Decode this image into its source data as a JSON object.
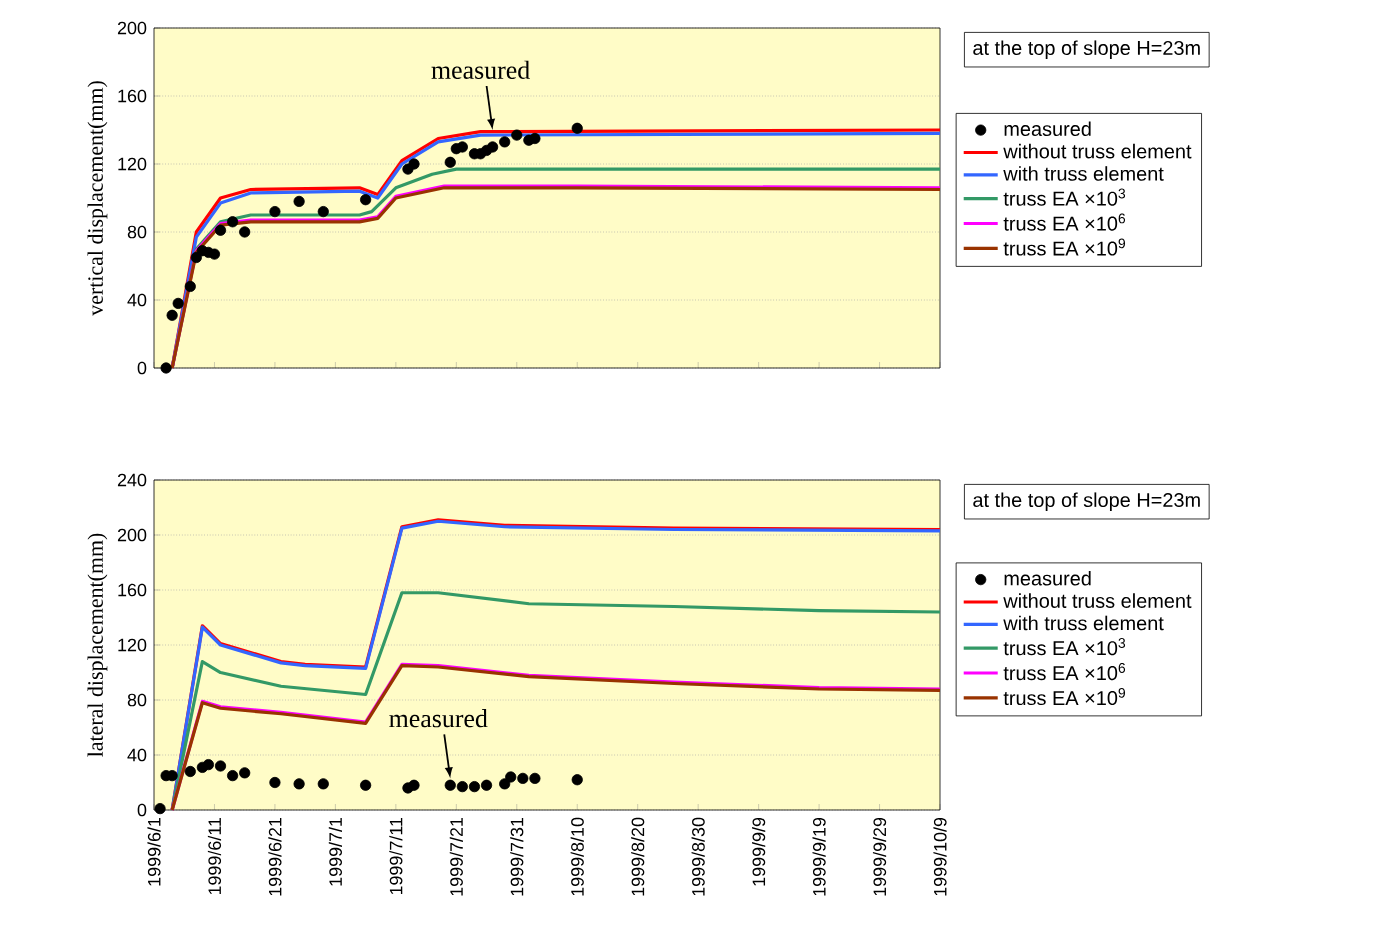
{
  "chart_data": [
    {
      "type": "line",
      "ylabel": "vertical displacement(mm)",
      "legend_title": "at the top of slope H=23m",
      "xlim": [
        "1999-06-01",
        "1999-10-09"
      ],
      "xticks": [
        {
          "value": "1999-06-01",
          "label": null
        },
        {
          "value": "1999-06-11",
          "label": null
        },
        {
          "value": "1999-06-21",
          "label": null
        },
        {
          "value": "1999-07-01",
          "label": null
        },
        {
          "value": "1999-07-11",
          "label": null
        },
        {
          "value": "1999-07-21",
          "label": null
        },
        {
          "value": "1999-07-31",
          "label": null
        },
        {
          "value": "1999-08-10",
          "label": null
        },
        {
          "value": "1999-08-20",
          "label": null
        },
        {
          "value": "1999-08-30",
          "label": null
        },
        {
          "value": "1999-09-09",
          "label": null
        },
        {
          "value": "1999-09-19",
          "label": null
        },
        {
          "value": "1999-09-29",
          "label": null
        },
        {
          "value": "1999-10-09",
          "label": null
        }
      ],
      "ylim": [
        0,
        200
      ],
      "yticks": [
        0,
        40,
        80,
        120,
        160,
        200
      ],
      "grid": "y",
      "legend": "right",
      "tick_labels": "y",
      "annotations": [
        {
          "text": "measured",
          "x": "1999-07-27",
          "y": 140
        }
      ],
      "series": [
        {
          "name": "measured",
          "type": "scatter",
          "marker": "circle",
          "color": "#000000",
          "x": [
            "1999-06-03",
            "1999-06-04",
            "1999-06-05",
            "1999-06-07",
            "1999-06-08",
            "1999-06-09",
            "1999-06-10",
            "1999-06-11",
            "1999-06-12",
            "1999-06-14",
            "1999-06-16",
            "1999-06-21",
            "1999-06-25",
            "1999-06-29",
            "1999-07-06",
            "1999-07-13",
            "1999-07-14",
            "1999-07-20",
            "1999-07-21",
            "1999-07-22",
            "1999-07-24",
            "1999-07-25",
            "1999-07-26",
            "1999-07-27",
            "1999-07-29",
            "1999-07-31",
            "1999-08-02",
            "1999-08-03",
            "1999-08-10"
          ],
          "values": [
            0,
            31,
            38,
            48,
            65,
            69,
            68,
            67,
            81,
            86,
            80,
            92,
            98,
            92,
            99,
            117,
            120,
            121,
            129,
            130,
            126,
            126,
            128,
            130,
            133,
            137,
            134,
            135,
            141
          ]
        },
        {
          "name": "without truss element",
          "color": "#ff0000",
          "x": [
            "1999-06-04",
            "1999-06-08",
            "1999-06-12",
            "1999-06-17",
            "1999-07-05",
            "1999-07-08",
            "1999-07-12",
            "1999-07-18",
            "1999-07-25",
            "1999-10-09"
          ],
          "values": [
            0,
            80,
            100,
            105,
            106,
            102,
            122,
            135,
            139,
            140
          ]
        },
        {
          "name": "with truss element",
          "color": "#3366ff",
          "x": [
            "1999-06-04",
            "1999-06-08",
            "1999-06-12",
            "1999-06-17",
            "1999-07-05",
            "1999-07-08",
            "1999-07-12",
            "1999-07-18",
            "1999-07-25",
            "1999-10-09"
          ],
          "values": [
            0,
            77,
            97,
            103,
            104,
            100,
            120,
            133,
            137,
            138
          ]
        },
        {
          "name": "truss EA ×10$^{3}$",
          "color": "#339966",
          "x": [
            "1999-06-04",
            "1999-06-08",
            "1999-06-12",
            "1999-06-17",
            "1999-07-05",
            "1999-07-07",
            "1999-07-11",
            "1999-07-17",
            "1999-07-21",
            "1999-10-09"
          ],
          "values": [
            0,
            70,
            86,
            90,
            90,
            92,
            106,
            114,
            117,
            117
          ]
        },
        {
          "name": "truss EA ×10$^{6}$",
          "color": "#ff00ff",
          "x": [
            "1999-06-04",
            "1999-06-08",
            "1999-06-12",
            "1999-06-17",
            "1999-07-05",
            "1999-07-08",
            "1999-07-11",
            "1999-07-19",
            "1999-08-10",
            "1999-10-09"
          ],
          "values": [
            0,
            69,
            85,
            87,
            87,
            89,
            101,
            107,
            107,
            106
          ]
        },
        {
          "name": "truss EA ×10$^{9}$",
          "color": "#993300",
          "x": [
            "1999-06-04",
            "1999-06-08",
            "1999-06-12",
            "1999-06-17",
            "1999-07-05",
            "1999-07-08",
            "1999-07-11",
            "1999-07-19",
            "1999-08-10",
            "1999-10-09"
          ],
          "values": [
            0,
            68,
            84,
            86,
            86,
            88,
            100,
            106,
            106,
            105
          ]
        }
      ]
    },
    {
      "type": "line",
      "ylabel": "lateral displacement(mm)",
      "legend_title": "at the top of slope H=23m",
      "xlim": [
        "1999-06-01",
        "1999-10-09"
      ],
      "xticks": [
        {
          "value": "1999-06-01",
          "label": "1999/6/1"
        },
        {
          "value": "1999-06-11",
          "label": "1999/6/11"
        },
        {
          "value": "1999-06-21",
          "label": "1999/6/21"
        },
        {
          "value": "1999-07-01",
          "label": "1999/7/1"
        },
        {
          "value": "1999-07-11",
          "label": "1999/7/11"
        },
        {
          "value": "1999-07-21",
          "label": "1999/7/21"
        },
        {
          "value": "1999-07-31",
          "label": "1999/7/31"
        },
        {
          "value": "1999-08-10",
          "label": "1999/8/10"
        },
        {
          "value": "1999-08-20",
          "label": "1999/8/20"
        },
        {
          "value": "1999-08-30",
          "label": "1999/8/30"
        },
        {
          "value": "1999-09-09",
          "label": "1999/9/9"
        },
        {
          "value": "1999-09-19",
          "label": "1999/9/19"
        },
        {
          "value": "1999-09-29",
          "label": "1999/9/29"
        },
        {
          "value": "1999-10-09",
          "label": "1999/10/9"
        }
      ],
      "ylim": [
        0,
        240
      ],
      "yticks": [
        0,
        40,
        80,
        120,
        160,
        200,
        240
      ],
      "grid": "y",
      "legend": "right",
      "annotations": [
        {
          "text": "measured",
          "x": "1999-07-20",
          "y": 23
        }
      ],
      "series": [
        {
          "name": "measured",
          "type": "scatter",
          "marker": "circle",
          "color": "#000000",
          "x": [
            "1999-06-02",
            "1999-06-03",
            "1999-06-04",
            "1999-06-07",
            "1999-06-09",
            "1999-06-10",
            "1999-06-12",
            "1999-06-14",
            "1999-06-16",
            "1999-06-21",
            "1999-06-25",
            "1999-06-29",
            "1999-07-06",
            "1999-07-13",
            "1999-07-14",
            "1999-07-20",
            "1999-07-22",
            "1999-07-24",
            "1999-07-26",
            "1999-07-29",
            "1999-07-30",
            "1999-08-01",
            "1999-08-03",
            "1999-08-10"
          ],
          "values": [
            1,
            25,
            25,
            28,
            31,
            33,
            32,
            25,
            27,
            20,
            19,
            19,
            18,
            16,
            18,
            18,
            17,
            17,
            18,
            19,
            24,
            23,
            23,
            22
          ]
        },
        {
          "name": "without truss element",
          "color": "#ff0000",
          "x": [
            "1999-06-04",
            "1999-06-09",
            "1999-06-12",
            "1999-06-22",
            "1999-06-26",
            "1999-07-06",
            "1999-07-12",
            "1999-07-18",
            "1999-07-29",
            "1999-08-26",
            "1999-10-09"
          ],
          "values": [
            0,
            134,
            121,
            108,
            106,
            104,
            206,
            211,
            207,
            205,
            204
          ]
        },
        {
          "name": "with truss element",
          "color": "#3366ff",
          "x": [
            "1999-06-04",
            "1999-06-09",
            "1999-06-12",
            "1999-06-22",
            "1999-06-26",
            "1999-07-06",
            "1999-07-12",
            "1999-07-18",
            "1999-07-29",
            "1999-08-26",
            "1999-10-09"
          ],
          "values": [
            0,
            133,
            120,
            107,
            105,
            103,
            205,
            210,
            206,
            204,
            203
          ]
        },
        {
          "name": "truss EA ×10$^{3}$",
          "color": "#339966",
          "x": [
            "1999-06-04",
            "1999-06-09",
            "1999-06-12",
            "1999-06-22",
            "1999-07-06",
            "1999-07-12",
            "1999-07-18",
            "1999-08-02",
            "1999-08-26",
            "1999-09-19",
            "1999-10-09"
          ],
          "values": [
            0,
            108,
            100,
            90,
            84,
            158,
            158,
            150,
            148,
            145,
            144
          ]
        },
        {
          "name": "truss EA ×10$^{6}$",
          "color": "#ff00ff",
          "x": [
            "1999-06-04",
            "1999-06-09",
            "1999-06-12",
            "1999-06-22",
            "1999-07-06",
            "1999-07-12",
            "1999-07-18",
            "1999-08-02",
            "1999-08-26",
            "1999-09-19",
            "1999-10-09"
          ],
          "values": [
            0,
            79,
            75,
            71,
            64,
            106,
            105,
            98,
            93,
            89,
            88
          ]
        },
        {
          "name": "truss EA ×10$^{9}$",
          "color": "#993300",
          "x": [
            "1999-06-04",
            "1999-06-09",
            "1999-06-12",
            "1999-06-22",
            "1999-07-06",
            "1999-07-12",
            "1999-07-18",
            "1999-08-02",
            "1999-08-26",
            "1999-09-19",
            "1999-10-09"
          ],
          "values": [
            0,
            78,
            74,
            70,
            63,
            105,
            104,
            97,
            92,
            88,
            87
          ]
        }
      ]
    }
  ]
}
